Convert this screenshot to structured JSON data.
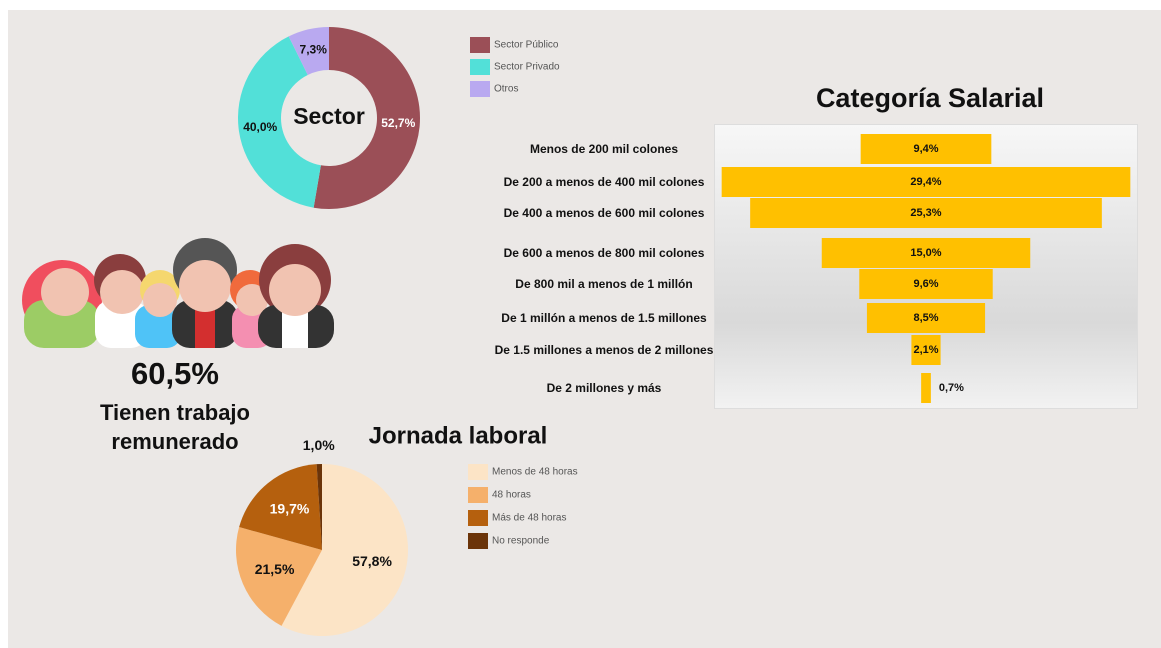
{
  "chart_data": [
    {
      "type": "donut",
      "title": "Sector",
      "categories": [
        "Sector Público",
        "Sector Privado",
        "Otros"
      ],
      "values": [
        52.7,
        40.0,
        7.3
      ],
      "value_labels": [
        "52,7%",
        "40,0%",
        "7,3%"
      ],
      "colors": [
        "#9b4f57",
        "#52e0d8",
        "#b9a9f0"
      ]
    },
    {
      "type": "funnel",
      "title": "Categoría Salarial",
      "categories": [
        "Menos de 200 mil colones",
        "De 200 a menos de 400 mil colones",
        "De 400 a menos de 600 mil colones",
        "De 600 a menos de 800 mil colones",
        "De 800 mil a menos de 1 millón",
        "De 1 millón a menos de 1.5 millones",
        "De 1.5 millones a menos de 2 millones",
        "De 2 millones y más"
      ],
      "values": [
        9.4,
        29.4,
        25.3,
        15.0,
        9.6,
        8.5,
        2.1,
        0.7
      ],
      "value_labels": [
        "9,4%",
        "29,4%",
        "25,3%",
        "15,0%",
        "9,6%",
        "8,5%",
        "2,1%",
        "0,7%"
      ],
      "color": "#ffc000"
    },
    {
      "type": "pie",
      "title": "Jornada laboral",
      "categories": [
        "Menos de 48 horas",
        "48 horas",
        "Más de 48 horas",
        "No responde"
      ],
      "values": [
        57.8,
        21.5,
        19.7,
        1.0
      ],
      "value_labels": [
        "57,8%",
        "21,5%",
        "19,7%",
        "1,0%"
      ],
      "colors": [
        "#fce4c6",
        "#f5b06b",
        "#b5600e",
        "#6b3409"
      ]
    }
  ],
  "highlight": {
    "value_label": "60,5%",
    "text": "Tienen trabajo remunerado"
  }
}
